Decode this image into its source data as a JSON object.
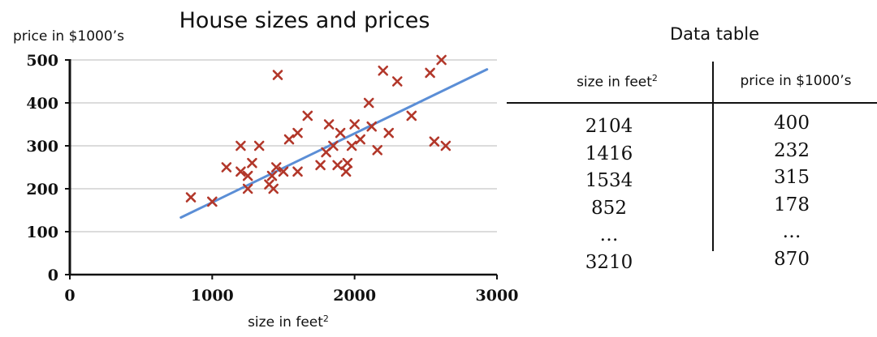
{
  "chart_data": {
    "type": "scatter",
    "title": "House sizes and prices",
    "xlabel": "size in feet",
    "xlabel_superscript": "2",
    "ylabel": "price in $1000’s",
    "xlim": [
      0,
      3000
    ],
    "ylim": [
      0,
      500
    ],
    "xticks": [
      "0",
      "1000",
      "2000",
      "3000"
    ],
    "yticks": [
      "0",
      "100",
      "200",
      "300",
      "400",
      "500"
    ],
    "grid": "horizontal",
    "marker": "x",
    "marker_color": "#b2372a",
    "line_color": "#5b8ed6",
    "points": [
      [
        850,
        180
      ],
      [
        1000,
        170
      ],
      [
        1100,
        250
      ],
      [
        1200,
        300
      ],
      [
        1200,
        240
      ],
      [
        1250,
        230
      ],
      [
        1250,
        200
      ],
      [
        1280,
        260
      ],
      [
        1330,
        300
      ],
      [
        1400,
        210
      ],
      [
        1420,
        230
      ],
      [
        1430,
        200
      ],
      [
        1450,
        250
      ],
      [
        1460,
        465
      ],
      [
        1500,
        240
      ],
      [
        1540,
        315
      ],
      [
        1600,
        330
      ],
      [
        1600,
        240
      ],
      [
        1670,
        370
      ],
      [
        1760,
        255
      ],
      [
        1800,
        285
      ],
      [
        1820,
        350
      ],
      [
        1850,
        300
      ],
      [
        1880,
        255
      ],
      [
        1900,
        330
      ],
      [
        1940,
        240
      ],
      [
        1950,
        260
      ],
      [
        1980,
        300
      ],
      [
        2000,
        350
      ],
      [
        2040,
        315
      ],
      [
        2100,
        400
      ],
      [
        2120,
        345
      ],
      [
        2160,
        290
      ],
      [
        2200,
        475
      ],
      [
        2240,
        330
      ],
      [
        2300,
        450
      ],
      [
        2400,
        370
      ],
      [
        2530,
        470
      ],
      [
        2560,
        310
      ],
      [
        2610,
        500
      ],
      [
        2640,
        300
      ]
    ],
    "fit_line": {
      "x": [
        780,
        2930
      ],
      "y": [
        133,
        478
      ]
    }
  },
  "table": {
    "title": "Data table",
    "headers": {
      "size": "size in feet",
      "size_superscript": "2",
      "price": "price in $1000’s"
    },
    "size_values": [
      "2104",
      "1416",
      "1534",
      "852",
      "…",
      "3210"
    ],
    "price_values": [
      "400",
      "232",
      "315",
      "178",
      "…",
      "870"
    ]
  }
}
